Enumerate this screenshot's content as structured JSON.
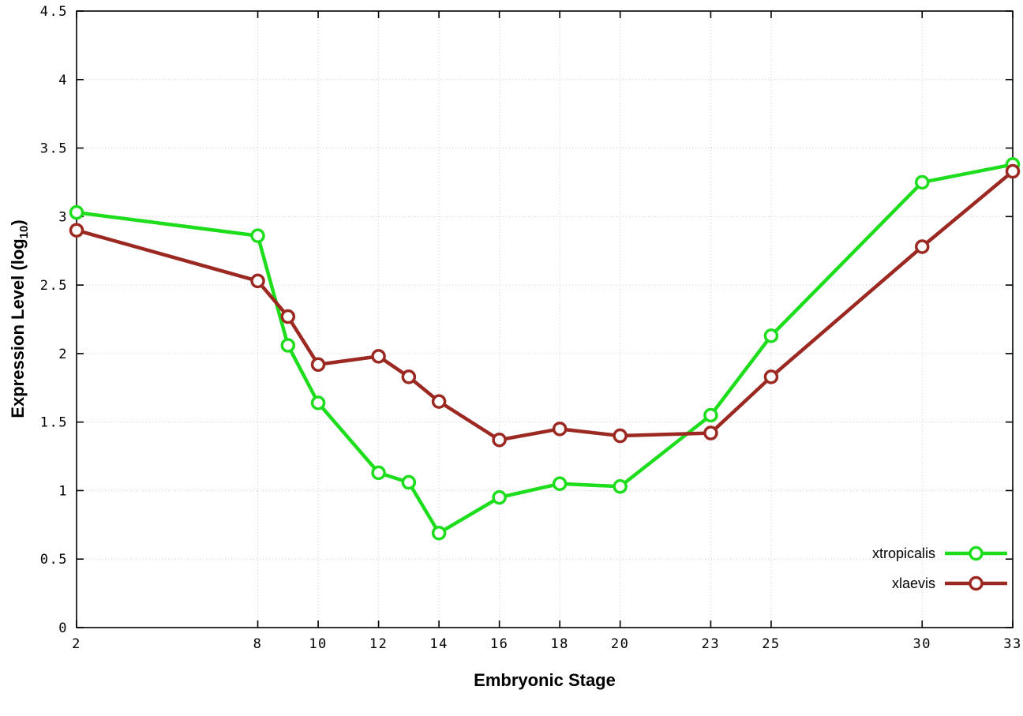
{
  "page": {
    "background": "#ffffff",
    "grid_color": "#cccccc",
    "border_color": "#000000"
  },
  "chart_data": {
    "type": "line",
    "title": "",
    "xlabel": "Embryonic Stage",
    "ylabel": "Expression Level (log10)",
    "ylabel_parts": {
      "text": "Expression Level (log",
      "sub": "10",
      "suffix": ")"
    },
    "xlim": [
      2,
      33
    ],
    "ylim": [
      0,
      4.5
    ],
    "x_ticks": [
      2,
      8,
      10,
      12,
      14,
      16,
      18,
      20,
      23,
      25,
      30,
      33
    ],
    "x_tick_labels": [
      "2",
      "8",
      "10",
      "12",
      "14",
      "16",
      "18",
      "20",
      "23",
      "25",
      "30",
      "33"
    ],
    "y_ticks": [
      0,
      0.5,
      1,
      1.5,
      2,
      2.5,
      3,
      3.5,
      4,
      4.5
    ],
    "y_tick_labels": [
      "0",
      "0.5",
      "1",
      "1.5",
      "2",
      "2.5",
      "3",
      "3.5",
      "4",
      "4.5"
    ],
    "grid": true,
    "legend_position": "bottom-right",
    "x": [
      2,
      8,
      9,
      10,
      12,
      13,
      14,
      16,
      18,
      20,
      23,
      25,
      30,
      33
    ],
    "series": [
      {
        "name": "xtropicalis",
        "color": "#1ddd1d",
        "values": [
          3.03,
          2.86,
          2.06,
          1.64,
          1.13,
          1.06,
          0.69,
          0.95,
          1.05,
          1.03,
          1.55,
          2.13,
          3.25,
          3.38
        ]
      },
      {
        "name": "xlaevis",
        "color": "#9c2822",
        "values": [
          2.9,
          2.53,
          2.27,
          1.92,
          1.98,
          1.83,
          1.65,
          1.37,
          1.45,
          1.4,
          1.42,
          1.83,
          2.78,
          3.33
        ]
      }
    ]
  }
}
